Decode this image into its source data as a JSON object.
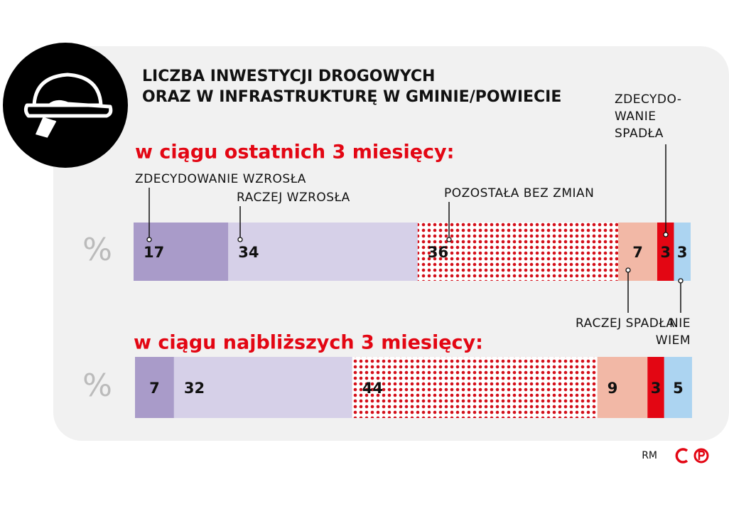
{
  "chart_data": {
    "type": "stacked_bar_100",
    "title": "LICZBA INWESTYCJI DROGOWYCH\nORAZ W INFRASTRUKTURĘ W GMINIE/POWIECIE",
    "categories": [
      "w ciągu ostatnich 3 miesięcy:",
      "w ciągu najbliższych 3 miesięcy:"
    ],
    "unit_label": "%",
    "xlim": [
      0,
      100
    ],
    "series": [
      {
        "name": "ZDECYDOWANIE WZROSŁA",
        "color": "#a99bc9",
        "values": [
          17,
          7
        ]
      },
      {
        "name": "RACZEJ WZROSŁA",
        "color": "#d6d0e8",
        "values": [
          34,
          32
        ]
      },
      {
        "name": "POZOSTAŁA BEZ ZMIAN",
        "color": "#d40f1a",
        "pattern": "dots",
        "values": [
          36,
          44
        ]
      },
      {
        "name": "RACZEJ SPADŁA",
        "color": "#f2b8a6",
        "values": [
          7,
          9
        ]
      },
      {
        "name": "ZDECYDO-\nWANIE\nSPADŁA",
        "color": "#e30613",
        "values": [
          3,
          3
        ]
      },
      {
        "name": "NIE\nWIEM",
        "color": "#acd4f1",
        "values": [
          3,
          5
        ]
      }
    ],
    "credit": "RM"
  }
}
